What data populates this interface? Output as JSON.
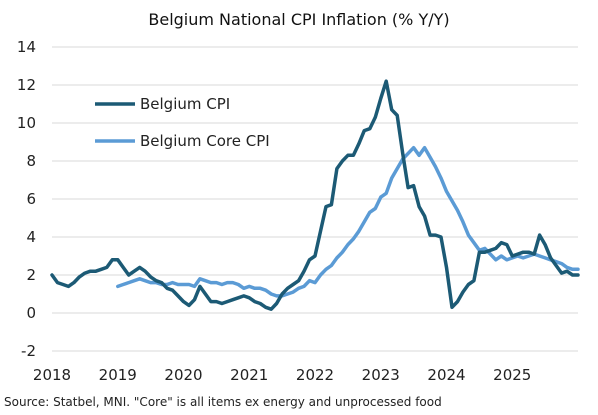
{
  "chart_data": {
    "type": "line",
    "title": "Belgium National CPI Inflation (% Y/Y)",
    "source": "Source: Statbel, MNI. \"Core\" is all items ex energy and unprocessed food",
    "xlabel": "",
    "ylabel": "",
    "ylim": [
      -2,
      14
    ],
    "yticks": [
      -2,
      0,
      2,
      4,
      6,
      8,
      10,
      12,
      14
    ],
    "xlim": [
      "2018-01",
      "2025-12"
    ],
    "xticks": [
      "2018",
      "2019",
      "2020",
      "2021",
      "2022",
      "2023",
      "2024",
      "2025"
    ],
    "grid": true,
    "legend_position": "top-left",
    "series": [
      {
        "name": "Belgium CPI",
        "color": "#1c5a75",
        "points": [
          [
            "2018-01",
            2.0
          ],
          [
            "2018-02",
            1.6
          ],
          [
            "2018-03",
            1.5
          ],
          [
            "2018-04",
            1.4
          ],
          [
            "2018-05",
            1.6
          ],
          [
            "2018-06",
            1.9
          ],
          [
            "2018-07",
            2.1
          ],
          [
            "2018-08",
            2.2
          ],
          [
            "2018-09",
            2.2
          ],
          [
            "2018-10",
            2.3
          ],
          [
            "2018-11",
            2.4
          ],
          [
            "2018-12",
            2.8
          ],
          [
            "2019-01",
            2.8
          ],
          [
            "2019-02",
            2.4
          ],
          [
            "2019-03",
            2.0
          ],
          [
            "2019-04",
            2.2
          ],
          [
            "2019-05",
            2.4
          ],
          [
            "2019-06",
            2.2
          ],
          [
            "2019-07",
            1.9
          ],
          [
            "2019-08",
            1.7
          ],
          [
            "2019-09",
            1.6
          ],
          [
            "2019-10",
            1.3
          ],
          [
            "2019-11",
            1.2
          ],
          [
            "2019-12",
            0.9
          ],
          [
            "2020-01",
            0.6
          ],
          [
            "2020-02",
            0.4
          ],
          [
            "2020-03",
            0.7
          ],
          [
            "2020-04",
            1.4
          ],
          [
            "2020-05",
            1.0
          ],
          [
            "2020-06",
            0.6
          ],
          [
            "2020-07",
            0.6
          ],
          [
            "2020-08",
            0.5
          ],
          [
            "2020-09",
            0.6
          ],
          [
            "2020-10",
            0.7
          ],
          [
            "2020-11",
            0.8
          ],
          [
            "2020-12",
            0.9
          ],
          [
            "2021-01",
            0.8
          ],
          [
            "2021-02",
            0.6
          ],
          [
            "2021-03",
            0.5
          ],
          [
            "2021-04",
            0.3
          ],
          [
            "2021-05",
            0.2
          ],
          [
            "2021-06",
            0.5
          ],
          [
            "2021-07",
            1.0
          ],
          [
            "2021-08",
            1.3
          ],
          [
            "2021-09",
            1.5
          ],
          [
            "2021-10",
            1.7
          ],
          [
            "2021-11",
            2.2
          ],
          [
            "2021-12",
            2.8
          ],
          [
            "2022-01",
            3.0
          ],
          [
            "2022-02",
            4.3
          ],
          [
            "2022-03",
            5.6
          ],
          [
            "2022-04",
            5.7
          ],
          [
            "2022-05",
            7.6
          ],
          [
            "2022-06",
            8.0
          ],
          [
            "2022-07",
            8.3
          ],
          [
            "2022-08",
            8.3
          ],
          [
            "2022-09",
            8.9
          ],
          [
            "2022-10",
            9.6
          ],
          [
            "2022-11",
            9.7
          ],
          [
            "2022-12",
            10.3
          ],
          [
            "2023-01",
            11.3
          ],
          [
            "2023-02",
            12.2
          ],
          [
            "2023-03",
            10.7
          ],
          [
            "2023-04",
            10.4
          ],
          [
            "2023-05",
            8.4
          ],
          [
            "2023-06",
            6.6
          ],
          [
            "2023-07",
            6.7
          ],
          [
            "2023-08",
            5.6
          ],
          [
            "2023-09",
            5.1
          ],
          [
            "2023-10",
            4.1
          ],
          [
            "2023-11",
            4.1
          ],
          [
            "2023-12",
            4.0
          ],
          [
            "2024-01",
            2.4
          ],
          [
            "2024-02",
            0.3
          ],
          [
            "2024-03",
            0.6
          ],
          [
            "2024-04",
            1.1
          ],
          [
            "2024-05",
            1.5
          ],
          [
            "2024-06",
            1.7
          ],
          [
            "2024-07",
            3.2
          ],
          [
            "2024-08",
            3.2
          ],
          [
            "2024-09",
            3.3
          ],
          [
            "2024-10",
            3.4
          ],
          [
            "2024-11",
            3.7
          ],
          [
            "2024-12",
            3.6
          ],
          [
            "2025-01",
            3.0
          ],
          [
            "2025-02",
            3.1
          ],
          [
            "2025-03",
            3.2
          ],
          [
            "2025-04",
            3.2
          ],
          [
            "2025-05",
            3.1
          ],
          [
            "2025-06",
            4.1
          ],
          [
            "2025-07",
            3.6
          ],
          [
            "2025-08",
            2.9
          ],
          [
            "2025-09",
            2.5
          ],
          [
            "2025-10",
            2.1
          ],
          [
            "2025-11",
            2.2
          ],
          [
            "2025-12",
            2.0
          ],
          [
            "2026-01",
            2.0
          ]
        ]
      },
      {
        "name": "Belgium Core CPI",
        "color": "#5b9bd5",
        "points": [
          [
            "2019-01",
            1.4
          ],
          [
            "2019-02",
            1.5
          ],
          [
            "2019-03",
            1.6
          ],
          [
            "2019-04",
            1.7
          ],
          [
            "2019-05",
            1.8
          ],
          [
            "2019-06",
            1.7
          ],
          [
            "2019-07",
            1.6
          ],
          [
            "2019-08",
            1.6
          ],
          [
            "2019-09",
            1.5
          ],
          [
            "2019-10",
            1.5
          ],
          [
            "2019-11",
            1.6
          ],
          [
            "2019-12",
            1.5
          ],
          [
            "2020-01",
            1.5
          ],
          [
            "2020-02",
            1.5
          ],
          [
            "2020-03",
            1.4
          ],
          [
            "2020-04",
            1.8
          ],
          [
            "2020-05",
            1.7
          ],
          [
            "2020-06",
            1.6
          ],
          [
            "2020-07",
            1.6
          ],
          [
            "2020-08",
            1.5
          ],
          [
            "2020-09",
            1.6
          ],
          [
            "2020-10",
            1.6
          ],
          [
            "2020-11",
            1.5
          ],
          [
            "2020-12",
            1.3
          ],
          [
            "2021-01",
            1.4
          ],
          [
            "2021-02",
            1.3
          ],
          [
            "2021-03",
            1.3
          ],
          [
            "2021-04",
            1.2
          ],
          [
            "2021-05",
            1.0
          ],
          [
            "2021-06",
            0.9
          ],
          [
            "2021-07",
            0.9
          ],
          [
            "2021-08",
            1.0
          ],
          [
            "2021-09",
            1.1
          ],
          [
            "2021-10",
            1.3
          ],
          [
            "2021-11",
            1.4
          ],
          [
            "2021-12",
            1.7
          ],
          [
            "2022-01",
            1.6
          ],
          [
            "2022-02",
            2.0
          ],
          [
            "2022-03",
            2.3
          ],
          [
            "2022-04",
            2.5
          ],
          [
            "2022-05",
            2.9
          ],
          [
            "2022-06",
            3.2
          ],
          [
            "2022-07",
            3.6
          ],
          [
            "2022-08",
            3.9
          ],
          [
            "2022-09",
            4.3
          ],
          [
            "2022-10",
            4.8
          ],
          [
            "2022-11",
            5.3
          ],
          [
            "2022-12",
            5.5
          ],
          [
            "2023-01",
            6.1
          ],
          [
            "2023-02",
            6.3
          ],
          [
            "2023-03",
            7.1
          ],
          [
            "2023-04",
            7.6
          ],
          [
            "2023-05",
            8.1
          ],
          [
            "2023-06",
            8.4
          ],
          [
            "2023-07",
            8.7
          ],
          [
            "2023-08",
            8.3
          ],
          [
            "2023-09",
            8.7
          ],
          [
            "2023-10",
            8.2
          ],
          [
            "2023-11",
            7.7
          ],
          [
            "2023-12",
            7.1
          ],
          [
            "2024-01",
            6.4
          ],
          [
            "2024-02",
            5.9
          ],
          [
            "2024-03",
            5.4
          ],
          [
            "2024-04",
            4.8
          ],
          [
            "2024-05",
            4.1
          ],
          [
            "2024-06",
            3.7
          ],
          [
            "2024-07",
            3.3
          ],
          [
            "2024-08",
            3.4
          ],
          [
            "2024-09",
            3.1
          ],
          [
            "2024-10",
            2.8
          ],
          [
            "2024-11",
            3.0
          ],
          [
            "2024-12",
            2.8
          ],
          [
            "2025-01",
            2.9
          ],
          [
            "2025-02",
            3.0
          ],
          [
            "2025-03",
            2.9
          ],
          [
            "2025-04",
            3.0
          ],
          [
            "2025-05",
            3.1
          ],
          [
            "2025-06",
            3.0
          ],
          [
            "2025-07",
            2.9
          ],
          [
            "2025-08",
            2.8
          ],
          [
            "2025-09",
            2.7
          ],
          [
            "2025-10",
            2.6
          ],
          [
            "2025-11",
            2.4
          ],
          [
            "2025-12",
            2.3
          ],
          [
            "2026-01",
            2.3
          ]
        ]
      }
    ]
  }
}
